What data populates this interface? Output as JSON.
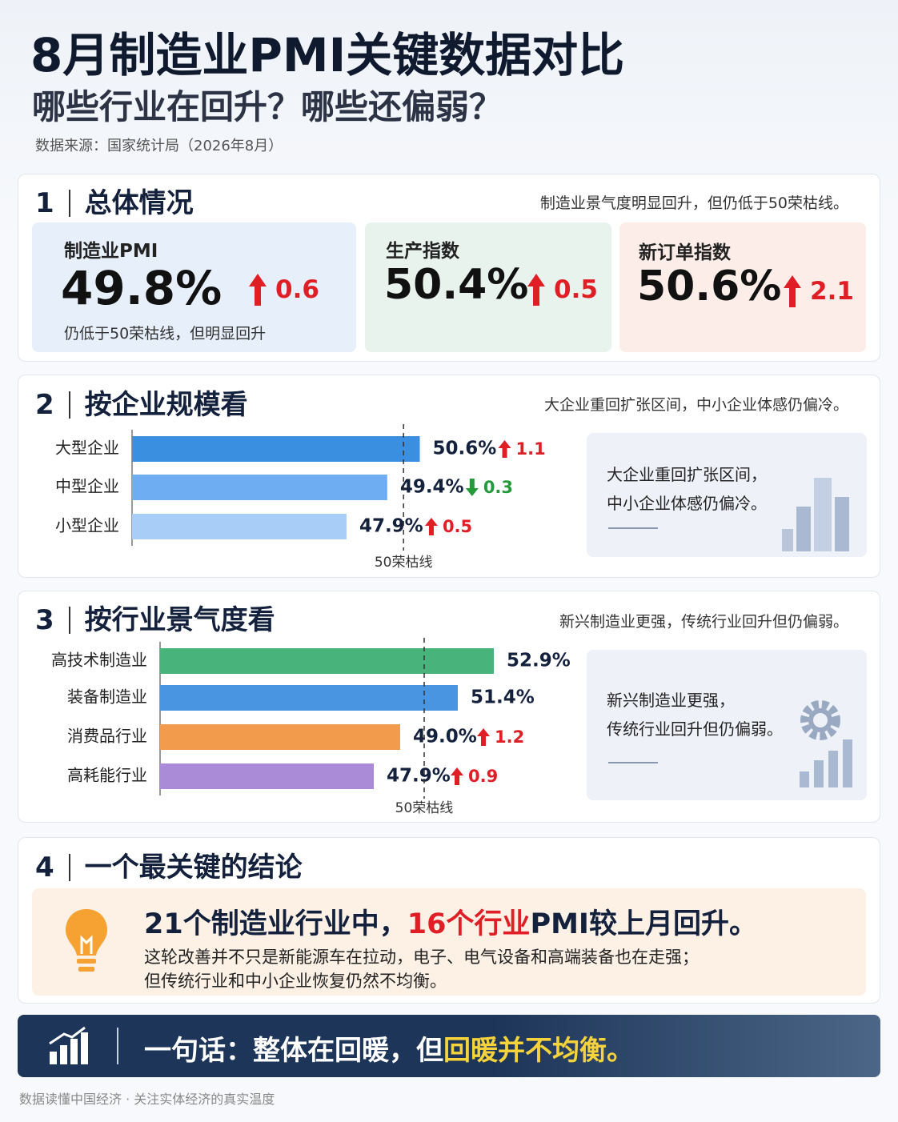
{
  "header": {
    "title": "8月制造业PMI关键数据对比",
    "subtitle": "哪些行业在回升？哪些还偏弱？",
    "source": "数据来源：国家统计局（2026年8月）"
  },
  "section1": {
    "number": "1",
    "title": "总体情况",
    "note": "制造业景气度明显回升，但仍低于50荣枯线。",
    "cards": [
      {
        "label": "制造业PMI",
        "value": "49.8%",
        "change": "0.6",
        "note": "仍低于50荣枯线，但明显回升"
      },
      {
        "label": "生产指数",
        "value": "50.4%",
        "change": "0.5"
      },
      {
        "label": "新订单指数",
        "value": "50.6%",
        "change": "2.1"
      }
    ]
  },
  "chart_data": [
    {
      "type": "bar",
      "number": "2",
      "title": "按企业规模看",
      "subtitle": "大企业重回扩张区间，中小企业体感仍偏冷。",
      "categories": [
        "大型企业",
        "中型企业",
        "小型企业"
      ],
      "values": [
        50.6,
        49.4,
        47.9
      ],
      "value_labels": [
        "50.6%",
        "49.4%",
        "47.9%"
      ],
      "changes": [
        1.1,
        -0.3,
        0.5
      ],
      "change_labels": [
        "1.1",
        "0.3",
        "0.5"
      ],
      "colors": [
        "#3a8fe0",
        "#6eadf1",
        "#a8cdf7"
      ],
      "xlim": [
        40,
        52
      ],
      "threshold": 50,
      "threshold_label": "50荣枯线",
      "side_note": [
        "大企业重回扩张区间，",
        "中小企业体感仍偏冷。"
      ]
    },
    {
      "type": "bar",
      "number": "3",
      "title": "按行业景气度看",
      "subtitle": "新兴制造业更强，传统行业回升但仍偏弱。",
      "categories": [
        "高技术制造业",
        "装备制造业",
        "消费品行业",
        "高耗能行业"
      ],
      "values": [
        52.9,
        51.4,
        49.0,
        47.9
      ],
      "value_labels": [
        "52.9%",
        "51.4%",
        "49.0%",
        "47.9%"
      ],
      "changes": [
        null,
        null,
        1.2,
        0.9
      ],
      "change_labels": [
        null,
        null,
        "1.2",
        "0.9"
      ],
      "colors": [
        "#48b47b",
        "#4a95e1",
        "#f39b4d",
        "#a98bd7"
      ],
      "xlim": [
        39,
        53
      ],
      "threshold": 50,
      "threshold_label": "50荣枯线",
      "side_note": [
        "新兴制造业更强，",
        "传统行业回升但仍偏弱。"
      ]
    }
  ],
  "section4": {
    "number": "4",
    "title": "一个最关键的结论",
    "headline": [
      "21个制造业行业中，",
      "16个行业",
      "PMI较上月回升。"
    ],
    "body": [
      "这轮改善并不只是新能源车在拉动，电子、电气设备和高端装备也在走强；",
      "但传统行业和中小企业恢复仍然不均衡。"
    ]
  },
  "banner": {
    "text": "一句话：整体在回暖，但",
    "highlight": "回暖并不均衡。"
  },
  "footer": "数据读懂中国经济 · 关注实体经济的真实温度"
}
